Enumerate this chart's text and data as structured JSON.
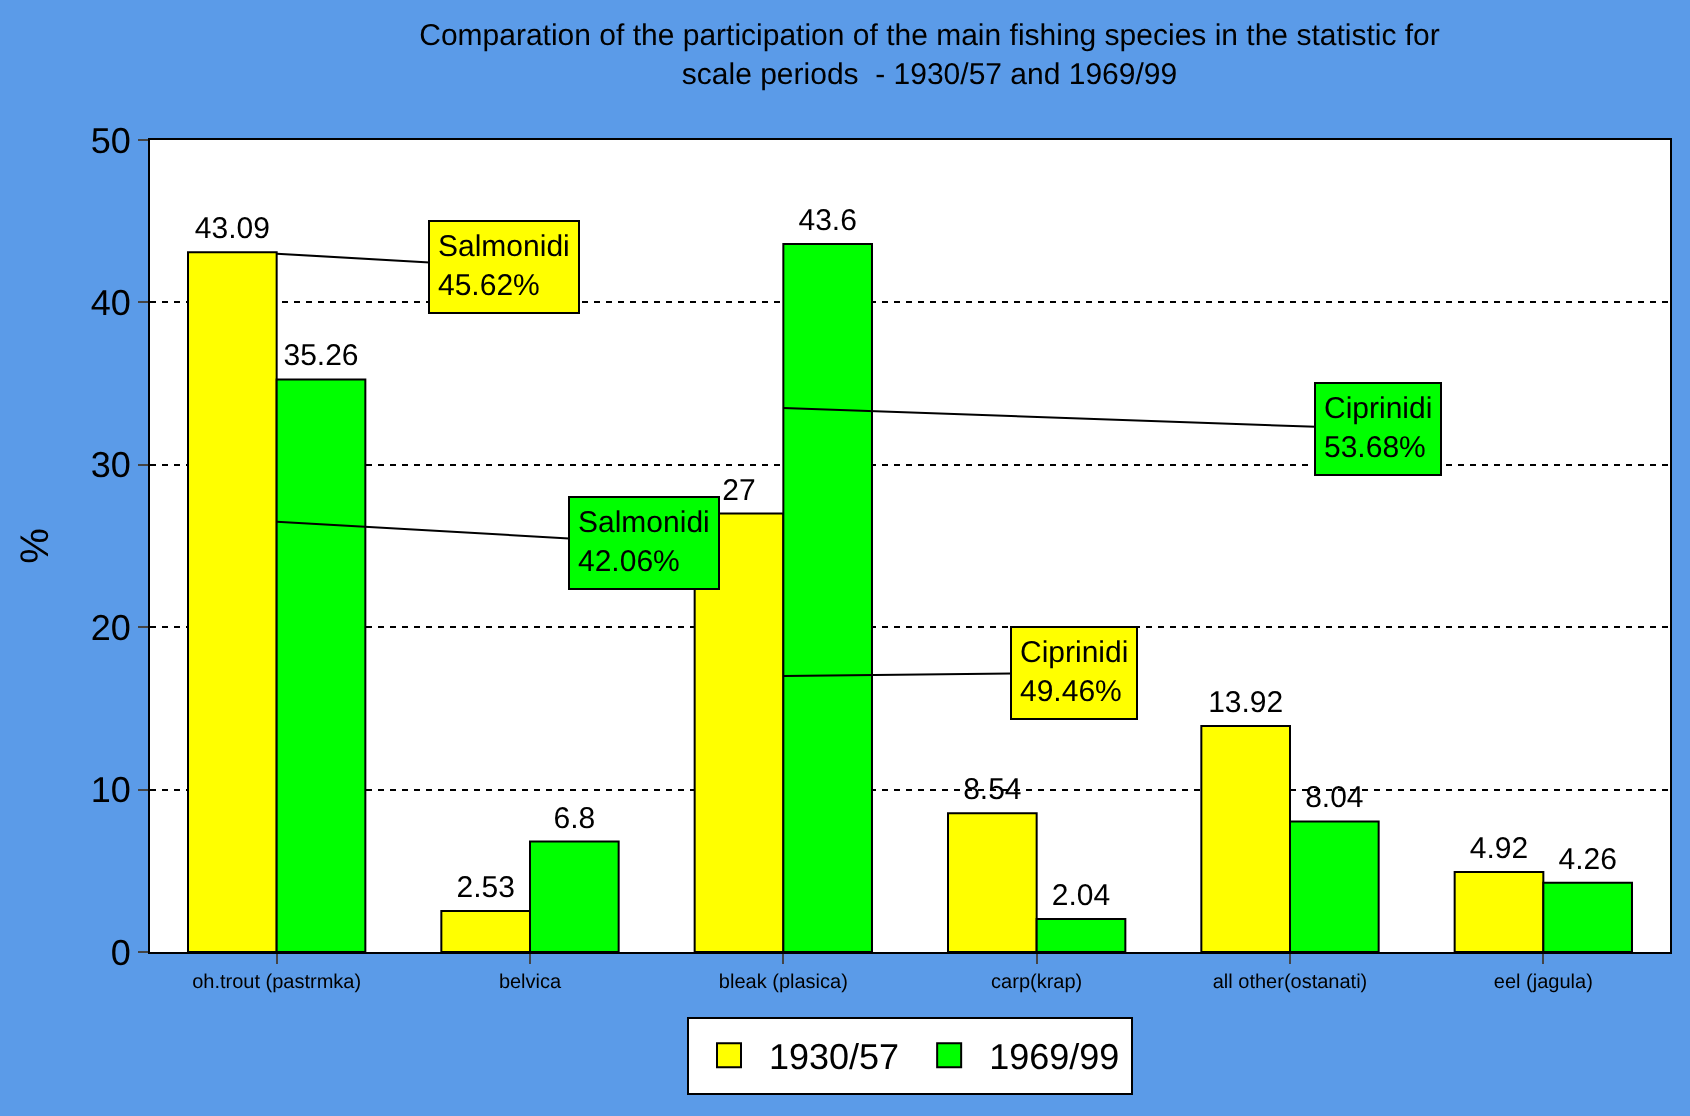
{
  "chart_data": {
    "type": "bar",
    "title": "Comparation of the participation of the main fishing species in the statistic for\nscale periods  - 1930/57 and 1969/99",
    "ylabel": "%",
    "categories": [
      "oh.trout (pastrmka)",
      "belvica",
      "bleak (plasica)",
      "carp(krap)",
      "all other(ostanati)",
      "eel (jagula)"
    ],
    "series": [
      {
        "name": "1930/57",
        "color": "#ffff00",
        "values": [
          43.09,
          2.53,
          27,
          8.54,
          13.92,
          4.92
        ]
      },
      {
        "name": "1969/99",
        "color": "#00ff00",
        "values": [
          35.26,
          6.8,
          43.6,
          2.04,
          8.04,
          4.26
        ]
      }
    ],
    "annotations": [
      {
        "text": "Salmonidi\n45.62%",
        "x": "oh.trout (pastrmka)",
        "y": 43
      },
      {
        "text": "Salmonidi\n42.06%",
        "x": "oh.trout (pastrmka)",
        "y": 26.5
      },
      {
        "text": "Ciprinidi\n49.46%",
        "x": "bleak (plasica)",
        "y": 17
      },
      {
        "text": "Ciprinidi\n53.68%",
        "x": "bleak (plasica)",
        "y": 33.5
      }
    ],
    "ylim": [
      0,
      50
    ],
    "yticks": [
      0,
      10,
      20,
      30,
      40,
      50
    ],
    "grid": "y",
    "legend": "bottom",
    "data_labels": true
  }
}
